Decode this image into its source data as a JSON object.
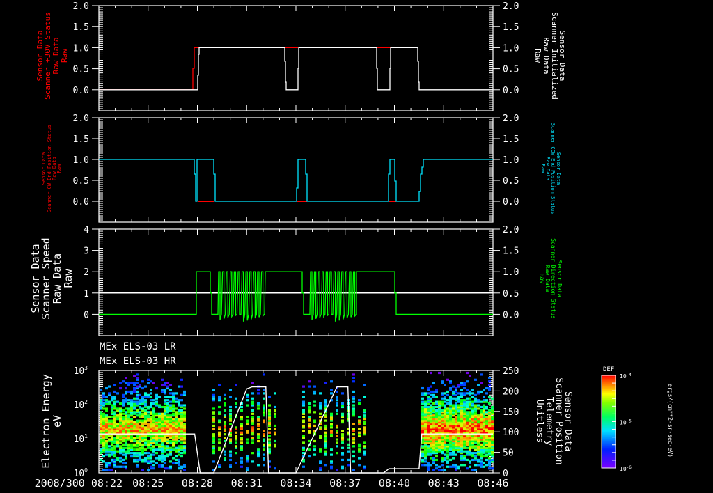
{
  "colors": {
    "white": "#ffffff",
    "red": "#ff0000",
    "cyan": "#00e5ff",
    "green": "#00ff00",
    "background": "#000000"
  },
  "chart_data": [
    {
      "type": "line",
      "panel": 1,
      "left_ylabel": [
        "Sensor Data",
        "Scanner +30V Status",
        "Raw Data",
        "Raw"
      ],
      "left_ylabel_color": "#ff0000",
      "right_ylabel": [
        "Sensor Data",
        "Scanner Initialized",
        "Raw Data",
        "Raw"
      ],
      "right_ylabel_color": "#ffffff",
      "left_yticks": [
        "2.0",
        "1.5",
        "1.0",
        "0.5",
        "0.0"
      ],
      "right_yticks": [
        "2.0",
        "1.5",
        "1.0",
        "0.5",
        "0.0"
      ],
      "ylim": [
        -0.5,
        2.0
      ],
      "series": [
        {
          "name": "Scanner +30V Status",
          "color": "#ff0000",
          "x": [
            "08:22",
            "08:25:10",
            "08:25:20",
            "08:36:30",
            "08:36:50",
            "08:41:30"
          ],
          "values": [
            0,
            0,
            1,
            1,
            1,
            1
          ]
        },
        {
          "name": "Scanner Initialized",
          "color": "#ffffff",
          "x": [
            "08:22",
            "08:25:20",
            "08:25:30",
            "08:31:30",
            "08:31:40",
            "08:33:30",
            "08:33:40",
            "08:39:50",
            "08:40:00",
            "08:40:30",
            "08:40:40",
            "08:42:00",
            "08:42:10",
            "08:46"
          ],
          "values": [
            0,
            0,
            1,
            1,
            0,
            0,
            1,
            1,
            0,
            0,
            1,
            1,
            0,
            0
          ]
        }
      ]
    },
    {
      "type": "line",
      "panel": 2,
      "left_ylabel": [
        "Sensor Data",
        "Scanner CW End Position Status",
        "Raw Data",
        "Raw"
      ],
      "left_ylabel_color": "#ff0000",
      "right_ylabel": [
        "Sensor Data",
        "Scanner CCW End Position Status",
        "Raw Data",
        "Raw"
      ],
      "right_ylabel_color": "#00e5ff",
      "left_yticks": [
        "2.0",
        "1.5",
        "1.0",
        "0.5",
        "0.0"
      ],
      "right_yticks": [
        "2.0",
        "1.5",
        "1.0",
        "0.5",
        "0.0"
      ],
      "ylim": [
        -0.5,
        2.0
      ],
      "series": [
        {
          "name": "Scanner CW End Position Status",
          "color": "#ff0000",
          "values": [
            0,
            0,
            0
          ]
        },
        {
          "name": "Scanner CCW End Position Status",
          "color": "#00e5ff",
          "x": [
            "08:22",
            "08:25:10",
            "08:25:20",
            "08:26:40",
            "08:32:00",
            "08:32:20",
            "08:38:00",
            "08:38:20",
            "08:42:20",
            "08:46"
          ],
          "values": [
            1,
            0,
            1,
            0,
            1,
            0,
            1,
            0,
            1,
            1
          ]
        }
      ]
    },
    {
      "type": "line",
      "panel": 3,
      "left_ylabel": [
        "Sensor Data",
        "Scanner Speed",
        "Raw Data",
        "Raw"
      ],
      "left_ylabel_color": "#ffffff",
      "right_ylabel": [
        "Sensor Data",
        "Scanner Direction Status",
        "Raw Data",
        "Raw"
      ],
      "right_ylabel_color": "#00ff00",
      "left_yticks": [
        "4",
        "3",
        "2",
        "1",
        "0"
      ],
      "right_yticks": [
        "2.0",
        "1.5",
        "1.0",
        "0.5",
        "0.0"
      ],
      "left_ylim": [
        -1,
        4
      ],
      "right_ylim": [
        -0.5,
        2.0
      ],
      "series": [
        {
          "name": "Scanner Speed",
          "color": "#ffffff",
          "constant": 1
        },
        {
          "name": "Scanner Direction Status",
          "color": "#00ff00",
          "x": [
            "08:22",
            "08:25:20",
            "08:26:20",
            "08:27:00",
            "08:30:20",
            "08:32:30",
            "08:33:30",
            "08:36:20",
            "08:40:10",
            "08:40:40",
            "08:46"
          ],
          "values": [
            0,
            1,
            0,
            "oscillating 0-1",
            1,
            0,
            "oscillating 0-1",
            1,
            1,
            0,
            0
          ]
        }
      ]
    },
    {
      "type": "heatmap",
      "panel": 4,
      "titles": [
        "MEx ELS-03 LR",
        "MEx ELS-03 HR"
      ],
      "left_ylabel": [
        "Electron Energy",
        "eV"
      ],
      "right_ylabel": [
        "Sensor Data",
        "Scanner Position",
        "Telemetry",
        "Unitless"
      ],
      "left_yticks": [
        "10^3",
        "10^2",
        "10^1",
        "10^0"
      ],
      "left_ylim": [
        1,
        1000
      ],
      "left_yscale": "log",
      "right_yticks": [
        "250",
        "200",
        "150",
        "100",
        "50",
        "0"
      ],
      "right_ylim": [
        0,
        250
      ],
      "xticks": [
        "2008/300 08:22",
        "08:25",
        "08:28",
        "08:31",
        "08:34",
        "08:37",
        "08:40",
        "08:43",
        "08:46"
      ],
      "colorbar": {
        "label": "DEF",
        "ticks": [
          "10^-4",
          "10^-5",
          "10^-6"
        ],
        "units": "ergs/(cm**2-sr-sec-eV)"
      },
      "overlay_series": {
        "name": "Scanner Position",
        "color": "#ffffff",
        "x": [
          "08:22",
          "08:27:50",
          "08:28:10",
          "08:29:00",
          "08:31:00",
          "08:31:20",
          "08:32:10",
          "08:32:20",
          "08:34:00",
          "08:36:30",
          "08:37:10",
          "08:37:20",
          "08:39:20",
          "08:39:40",
          "08:41:30",
          "08:41:40",
          "08:46"
        ],
        "values": [
          95,
          95,
          0,
          0,
          205,
          210,
          210,
          0,
          0,
          210,
          210,
          0,
          0,
          10,
          10,
          95,
          95
        ]
      }
    }
  ],
  "time_axis": {
    "date": "2008/300",
    "start": "08:22",
    "end": "08:46"
  }
}
